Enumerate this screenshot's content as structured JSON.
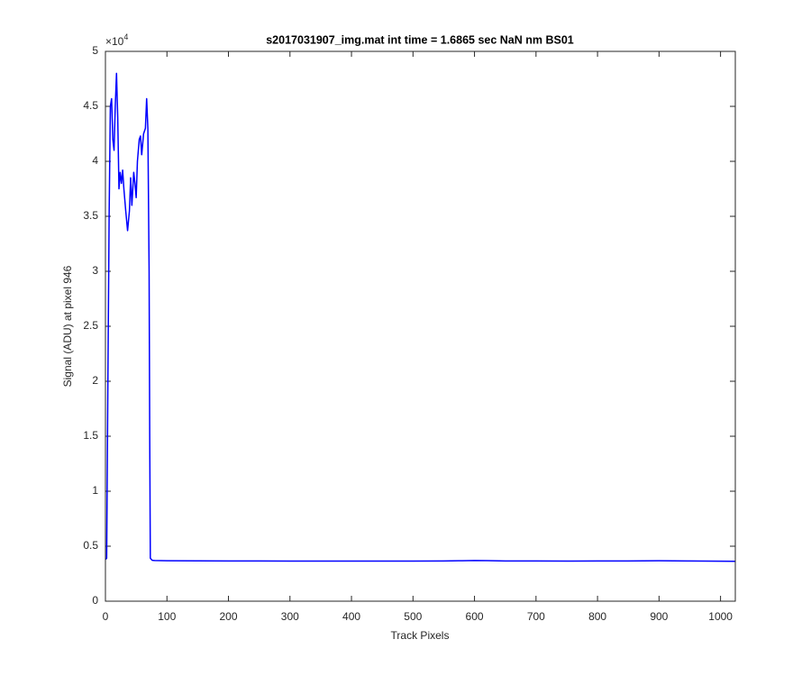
{
  "chart_data": {
    "type": "line",
    "title": "s2017031907_img.mat int time = 1.6865 sec  NaN nm BS01",
    "x_label": "Track Pixels",
    "y_label": "Signal (ADU) at pixel 946",
    "y_exponent": {
      "base": "×10",
      "power": "4"
    },
    "color": "#0000ff",
    "x": [
      0,
      2,
      4,
      6,
      8,
      10,
      12,
      14,
      16,
      18,
      20,
      22,
      24,
      26,
      28,
      30,
      33,
      36,
      39,
      41,
      43,
      46,
      48,
      50,
      52,
      55,
      57,
      59,
      62,
      65,
      67,
      69,
      71,
      72,
      73,
      76,
      80,
      100,
      150,
      200,
      250,
      300,
      350,
      400,
      450,
      500,
      550,
      580,
      600,
      620,
      650,
      700,
      750,
      800,
      850,
      900,
      950,
      1000,
      1024
    ],
    "values": [
      3800,
      3900,
      20000,
      35000,
      45000,
      45700,
      42000,
      41000,
      45000,
      48000,
      44000,
      37500,
      39000,
      38000,
      39200,
      37500,
      35500,
      33700,
      35500,
      38500,
      36000,
      39000,
      38000,
      36700,
      40000,
      42000,
      42300,
      40600,
      42500,
      43000,
      45700,
      43000,
      30000,
      15000,
      3900,
      3720,
      3700,
      3680,
      3670,
      3660,
      3660,
      3650,
      3650,
      3650,
      3650,
      3650,
      3660,
      3680,
      3700,
      3690,
      3660,
      3660,
      3650,
      3660,
      3660,
      3680,
      3660,
      3640,
      3630
    ],
    "xlim": [
      0,
      1024
    ],
    "xticks": [
      0,
      100,
      200,
      300,
      400,
      500,
      600,
      700,
      800,
      900,
      1000
    ],
    "ylim": [
      0,
      50000
    ],
    "yticks": [
      0,
      {
        "value": 5000,
        "label": "0.5"
      },
      {
        "value": 10000,
        "label": "1"
      },
      {
        "value": 15000,
        "label": "1.5"
      },
      {
        "value": 20000,
        "label": "2"
      },
      {
        "value": 25000,
        "label": "2.5"
      },
      {
        "value": 30000,
        "label": "3"
      },
      {
        "value": 35000,
        "label": "3.5"
      },
      {
        "value": 40000,
        "label": "4"
      },
      {
        "value": 45000,
        "label": "4.5"
      },
      {
        "value": 50000,
        "label": "5"
      }
    ],
    "grid": false
  }
}
